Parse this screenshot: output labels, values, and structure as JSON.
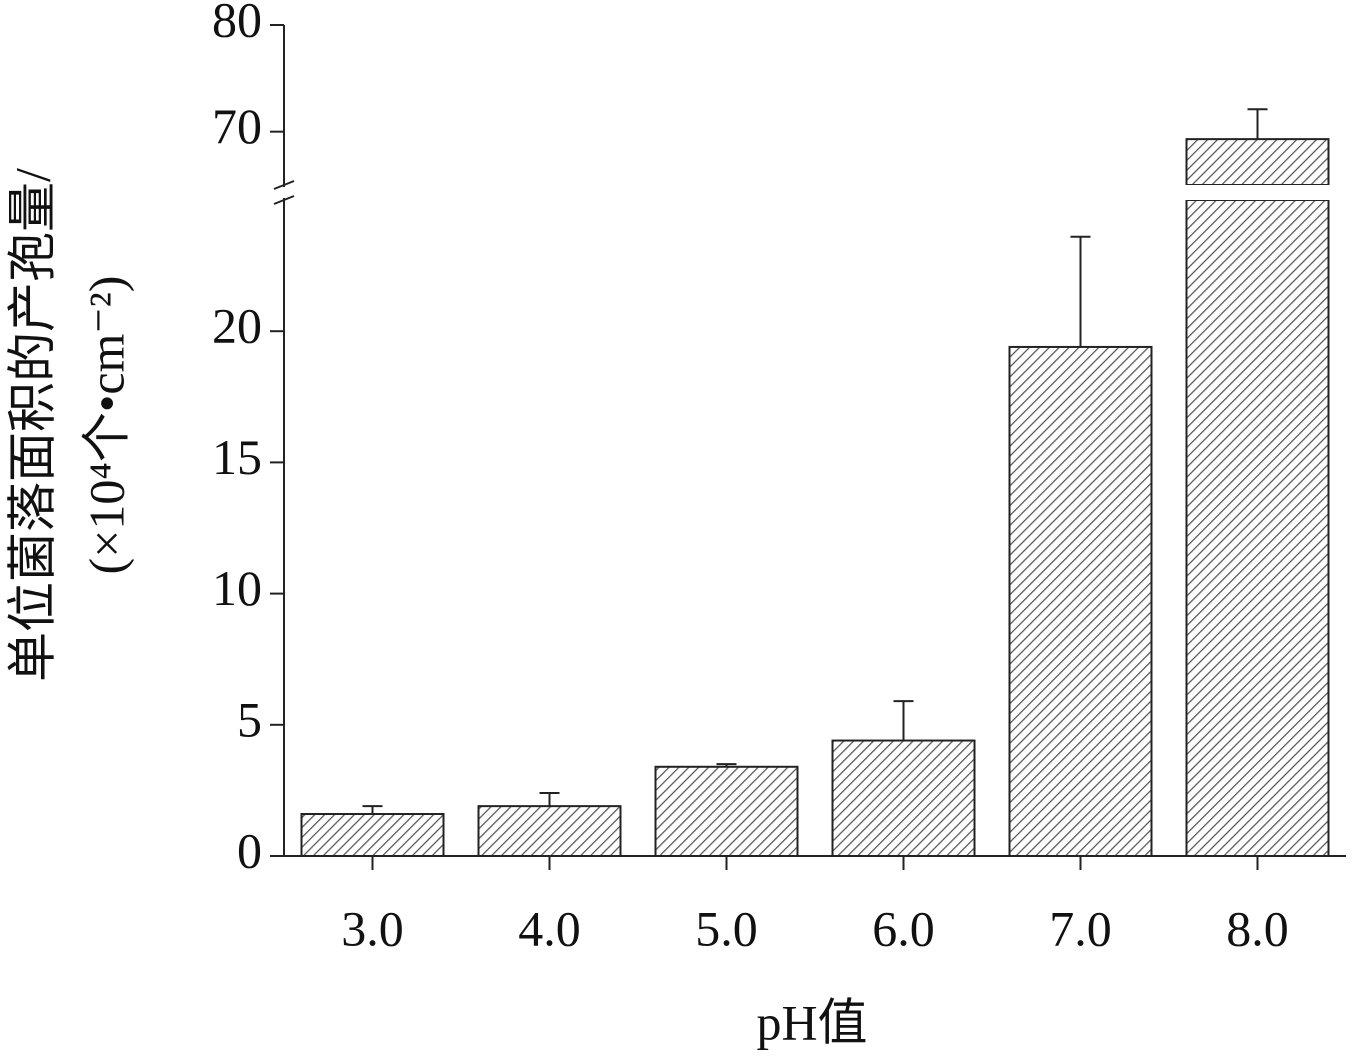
{
  "chart_data": {
    "type": "bar",
    "x_label": "pH值",
    "y_label": [
      "单位菌落面积的产孢量/",
      "(×10⁴个•cm⁻²)"
    ],
    "categories": [
      "3.0",
      "4.0",
      "5.0",
      "6.0",
      "7.0",
      "8.0"
    ],
    "values": [
      1.6,
      1.9,
      3.4,
      4.4,
      19.4,
      69.3
    ],
    "errors": [
      0.3,
      0.5,
      0.1,
      1.5,
      4.2,
      2.8
    ],
    "color": "#555555",
    "ylim": [
      0,
      80
    ],
    "y_break": [
      25,
      65
    ],
    "yticks": [
      0,
      5,
      10,
      15,
      20,
      70,
      80
    ]
  }
}
